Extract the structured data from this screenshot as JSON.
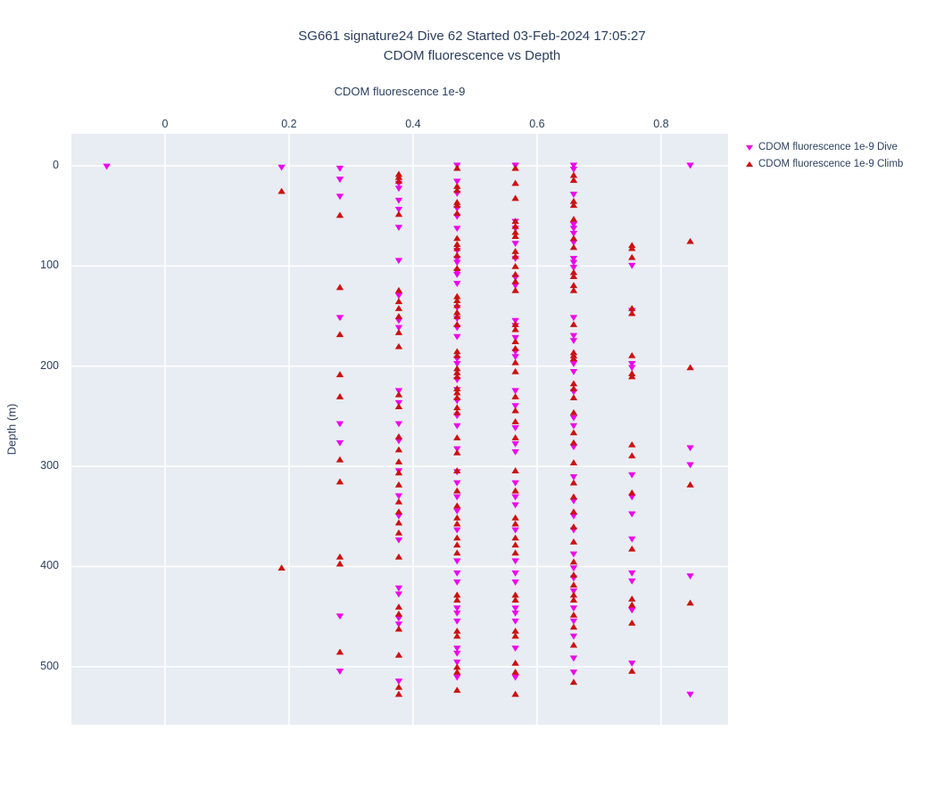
{
  "page_title": "SG661 Dive 62 CDOM fluorescence vs Depth plot",
  "colors": {
    "plot_background": "#e8edf3",
    "gridline": "#ffffff",
    "text": "#2a3f5f",
    "dive_marker": "#EE00EE",
    "climb_marker": "#CC1111"
  },
  "chart_data": {
    "type": "scatter",
    "title": "SG661 signature24 Dive 62 Started 03-Feb-2024 17:05:27",
    "subtitle": "CDOM fluorescence vs Depth",
    "xlabel": "CDOM fluorescence 1e-9",
    "ylabel": "Depth (m)",
    "grid": true,
    "y_axis_reversed": true,
    "legend_position": "outside-top-right",
    "xlim": [
      -0.151,
      0.908
    ],
    "ylim_depth": [
      -32,
      558
    ],
    "x_tick_values": [
      0,
      0.2,
      0.4,
      0.6,
      0.8
    ],
    "x_tick_labels": [
      "0",
      "0.2",
      "0.4",
      "0.6",
      "0.8"
    ],
    "y_tick_values": [
      0,
      100,
      200,
      300,
      400,
      500
    ],
    "y_tick_labels": [
      "0",
      "100",
      "200",
      "300",
      "400",
      "500"
    ],
    "series": [
      {
        "key": "dive",
        "name": "CDOM fluorescence 1e-9 Dive",
        "marker": "triangle-down",
        "color": "#EE00EE"
      },
      {
        "key": "climb",
        "name": "CDOM fluorescence 1e-9 Climb",
        "marker": "triangle-up",
        "color": "#CC1111"
      }
    ],
    "columns": [
      {
        "value": -0.094,
        "dive": [
          1
        ],
        "climb": []
      },
      {
        "value": 0.188,
        "dive": [
          2
        ],
        "climb": [
          25,
          401
        ]
      },
      {
        "value": 0.282,
        "dive": [
          3,
          14,
          31,
          152,
          258,
          277,
          450,
          505
        ],
        "climb": [
          49,
          121,
          168,
          208,
          230,
          293,
          315,
          390,
          397,
          485
        ]
      },
      {
        "value": 0.377,
        "dive": [
          18,
          23,
          35,
          44,
          62,
          95,
          130,
          155,
          162,
          225,
          237,
          258,
          275,
          305,
          330,
          350,
          374,
          422,
          428,
          452,
          458,
          515
        ],
        "climb": [
          8,
          11,
          15,
          48,
          124,
          135,
          142,
          150,
          166,
          180,
          228,
          240,
          270,
          283,
          295,
          306,
          318,
          335,
          345,
          356,
          366,
          390,
          440,
          447,
          462,
          488,
          520,
          527
        ]
      },
      {
        "value": 0.471,
        "dive": [
          0,
          16,
          28,
          43,
          51,
          63,
          85,
          93,
          97,
          106,
          109,
          118,
          142,
          153,
          162,
          171,
          193,
          198,
          214,
          224,
          235,
          250,
          260,
          283,
          306,
          317,
          331,
          345,
          364,
          395,
          407,
          416,
          442,
          447,
          455,
          482,
          487,
          496,
          511
        ],
        "climb": [
          2,
          20,
          24,
          36,
          39,
          47,
          72,
          78,
          82,
          89,
          102,
          130,
          134,
          139,
          146,
          150,
          158,
          185,
          189,
          202,
          206,
          210,
          222,
          226,
          231,
          241,
          246,
          271,
          286,
          304,
          324,
          339,
          351,
          357,
          371,
          378,
          386,
          428,
          433,
          464,
          469,
          500,
          505,
          523
        ]
      },
      {
        "value": 0.565,
        "dive": [
          0,
          56,
          63,
          78,
          93,
          112,
          120,
          155,
          160,
          172,
          186,
          191,
          225,
          240,
          262,
          278,
          286,
          317,
          331,
          339,
          364,
          395,
          407,
          416,
          442,
          447,
          455,
          482,
          511
        ],
        "climb": [
          2,
          17,
          32,
          55,
          60,
          66,
          70,
          85,
          90,
          100,
          108,
          115,
          124,
          158,
          163,
          175,
          182,
          196,
          205,
          230,
          244,
          255,
          271,
          304,
          324,
          351,
          357,
          371,
          378,
          386,
          428,
          433,
          464,
          469,
          496,
          505,
          527
        ]
      },
      {
        "value": 0.659,
        "dive": [
          0,
          4,
          29,
          59,
          63,
          68,
          77,
          93,
          97,
          102,
          152,
          170,
          175,
          198,
          206,
          226,
          252,
          260,
          281,
          311,
          335,
          350,
          364,
          388,
          402,
          412,
          425,
          442,
          455,
          470,
          492,
          506
        ],
        "climb": [
          9,
          14,
          35,
          39,
          53,
          72,
          81,
          106,
          110,
          119,
          124,
          158,
          186,
          189,
          192,
          217,
          222,
          231,
          246,
          266,
          276,
          296,
          316,
          330,
          345,
          360,
          375,
          395,
          408,
          418,
          428,
          433,
          448,
          460,
          478,
          515
        ]
      },
      {
        "value": 0.753,
        "dive": [
          100,
          145,
          198,
          202,
          309,
          331,
          348,
          373,
          407,
          415,
          444,
          497
        ],
        "climb": [
          79,
          82,
          91,
          142,
          147,
          189,
          207,
          210,
          278,
          289,
          326,
          382,
          432,
          438,
          456,
          504
        ]
      },
      {
        "value": 0.847,
        "dive": [
          0,
          282,
          299,
          410,
          528
        ],
        "climb": [
          75,
          201,
          318,
          436
        ]
      }
    ]
  }
}
